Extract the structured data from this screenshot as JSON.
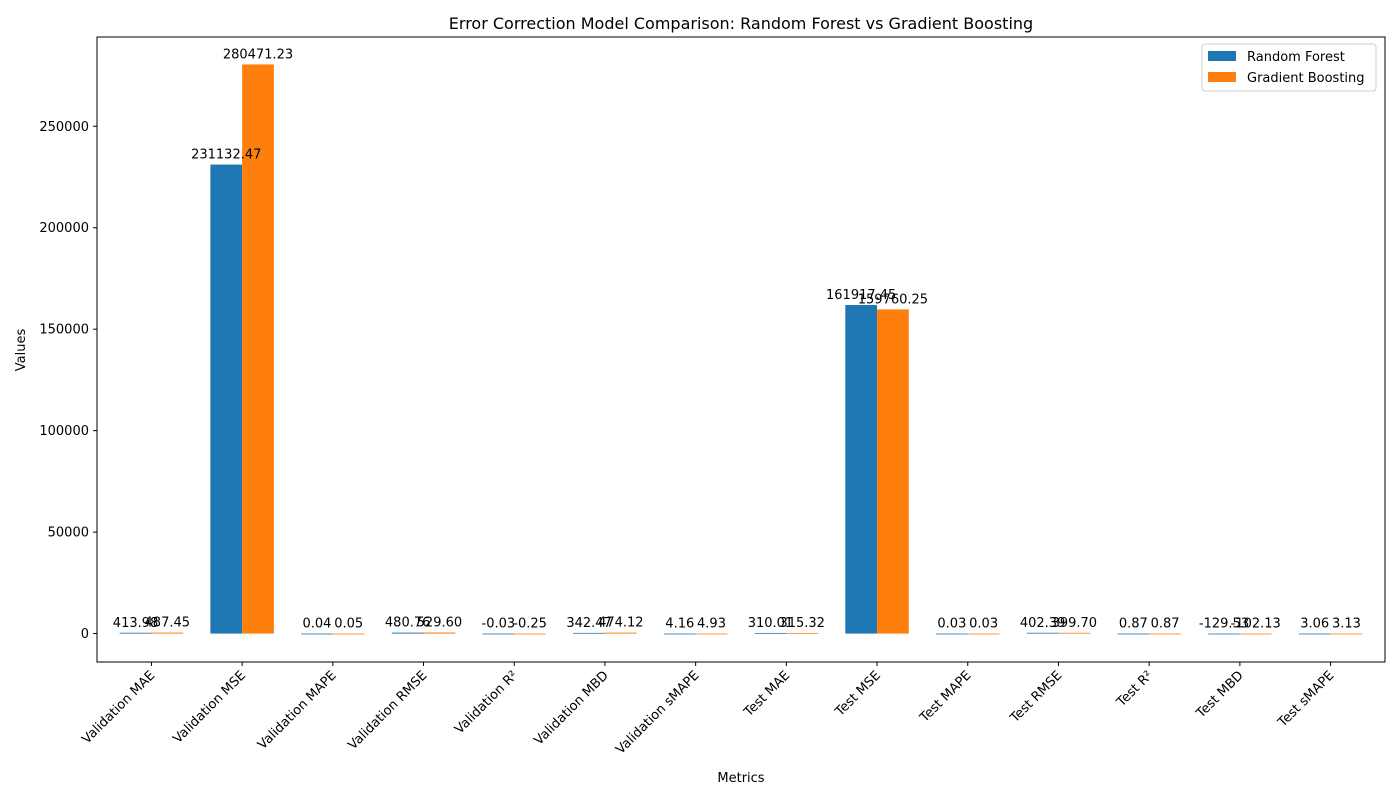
{
  "chart_data": {
    "type": "bar",
    "title": "Error Correction Model Comparison: Random Forest vs Gradient Boosting",
    "xlabel": "Metrics",
    "ylabel": "Values",
    "ylim": [
      -14000,
      294000
    ],
    "yticks": [
      0,
      50000,
      100000,
      150000,
      200000,
      250000
    ],
    "ytick_labels": [
      "0",
      "50000",
      "100000",
      "150000",
      "200000",
      "250000"
    ],
    "grid": false,
    "legend_position": "top-right",
    "categories": [
      "Validation MAE",
      "Validation MSE",
      "Validation MAPE",
      "Validation RMSE",
      "Validation R²",
      "Validation MBD",
      "Validation sMAPE",
      "Test MAE",
      "Test MSE",
      "Test MAPE",
      "Test RMSE",
      "Test R²",
      "Test MBD",
      "Test sMAPE"
    ],
    "series": [
      {
        "name": "Random Forest",
        "color": "#1f77b4",
        "values": [
          413.98,
          231132.47,
          0.04,
          480.76,
          -0.03,
          342.47,
          4.16,
          310.01,
          161917.45,
          0.03,
          402.39,
          0.87,
          -129.53,
          3.06
        ],
        "labels": [
          "413.98",
          "231132.47",
          "0.04",
          "480.76",
          "-0.03",
          "342.47",
          "4.16",
          "310.01",
          "161917.45",
          "0.03",
          "402.39",
          "0.87",
          "-129.53",
          "3.06"
        ]
      },
      {
        "name": "Gradient Boosting",
        "color": "#ff7f0e",
        "values": [
          487.45,
          280471.23,
          0.05,
          529.6,
          -0.25,
          474.12,
          4.93,
          315.32,
          159760.25,
          0.03,
          399.7,
          0.87,
          -102.13,
          3.13
        ],
        "labels": [
          "487.45",
          "280471.23",
          "0.05",
          "529.60",
          "-0.25",
          "474.12",
          "4.93",
          "315.32",
          "159760.25",
          "0.03",
          "399.70",
          "0.87",
          "-102.13",
          "3.13"
        ]
      }
    ]
  }
}
